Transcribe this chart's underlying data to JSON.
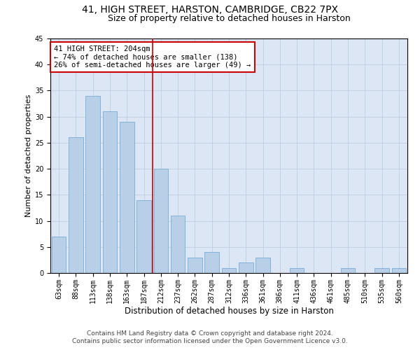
{
  "title1": "41, HIGH STREET, HARSTON, CAMBRIDGE, CB22 7PX",
  "title2": "Size of property relative to detached houses in Harston",
  "xlabel": "Distribution of detached houses by size in Harston",
  "ylabel": "Number of detached properties",
  "categories": [
    "63sqm",
    "88sqm",
    "113sqm",
    "138sqm",
    "163sqm",
    "187sqm",
    "212sqm",
    "237sqm",
    "262sqm",
    "287sqm",
    "312sqm",
    "336sqm",
    "361sqm",
    "386sqm",
    "411sqm",
    "436sqm",
    "461sqm",
    "485sqm",
    "510sqm",
    "535sqm",
    "560sqm"
  ],
  "values": [
    7,
    26,
    34,
    31,
    29,
    14,
    20,
    11,
    3,
    4,
    1,
    2,
    3,
    0,
    1,
    0,
    0,
    1,
    0,
    1,
    1
  ],
  "bar_color": "#b8cfe8",
  "bar_edge_color": "#7aadd4",
  "ylim": [
    0,
    45
  ],
  "yticks": [
    0,
    5,
    10,
    15,
    20,
    25,
    30,
    35,
    40,
    45
  ],
  "annotation_line1": "41 HIGH STREET: 204sqm",
  "annotation_line2": "← 74% of detached houses are smaller (138)",
  "annotation_line3": "26% of semi-detached houses are larger (49) →",
  "vline_position": 5.5,
  "footer1": "Contains HM Land Registry data © Crown copyright and database right 2024.",
  "footer2": "Contains public sector information licensed under the Open Government Licence v3.0.",
  "background_color": "#ffffff",
  "plot_bg_color": "#dce6f5",
  "grid_color": "#b8c8de",
  "vline_color": "#cc0000",
  "annotation_box_edge_color": "#cc0000",
  "title1_fontsize": 10,
  "title2_fontsize": 9,
  "xlabel_fontsize": 8.5,
  "ylabel_fontsize": 8,
  "tick_fontsize": 7,
  "annot_fontsize": 7.5,
  "footer_fontsize": 6.5
}
